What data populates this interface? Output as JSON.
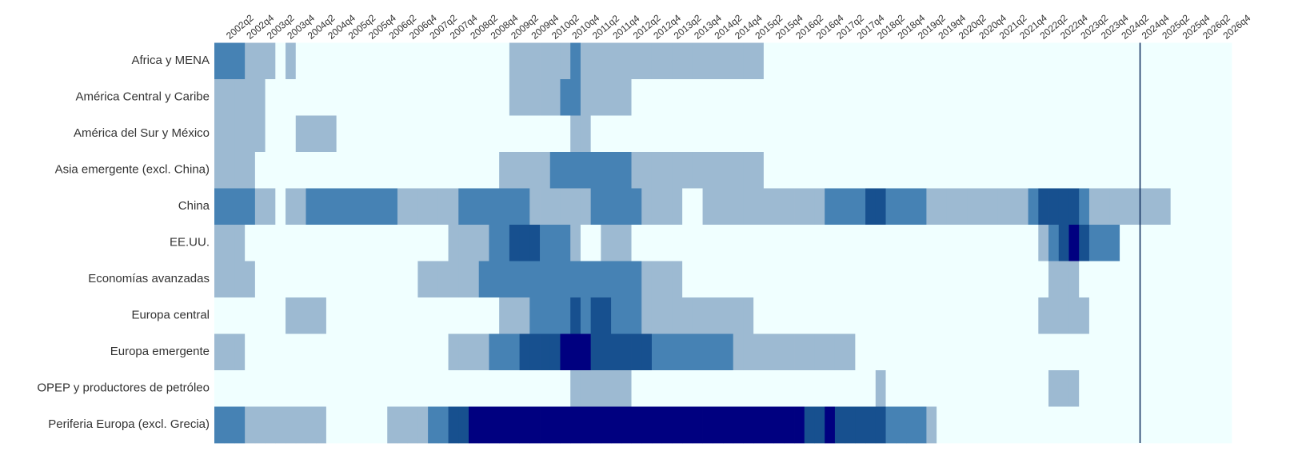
{
  "chart_data": {
    "type": "heatmap",
    "x": [
      null,
      "2002q2",
      null,
      "2002q4",
      null,
      "2003q2",
      null,
      "2003q4",
      null,
      "2004q2",
      null,
      "2004q4",
      null,
      "2005q2",
      null,
      "2005q4",
      null,
      "2006q2",
      null,
      "2006q4",
      null,
      "2007q2",
      null,
      "2007q4",
      null,
      "2008q2",
      null,
      "2008q4",
      null,
      "2009q2",
      null,
      "2009q4",
      null,
      "2010q2",
      null,
      "2010q4",
      null,
      "2011q2",
      null,
      "2011q4",
      null,
      "2012q2",
      null,
      "2012q4",
      null,
      "2013q2",
      null,
      "2013q4",
      null,
      "2014q2",
      null,
      "2014q4",
      null,
      "2015q2",
      null,
      "2015q4",
      null,
      "2016q2",
      null,
      "2016q4",
      null,
      "2017q2",
      null,
      "2017q4",
      null,
      "2018q2",
      null,
      "2018q4",
      null,
      "2019q2",
      null,
      "2019q4",
      null,
      "2020q2",
      null,
      "2020q4",
      null,
      "2021q2",
      null,
      "2021q4",
      null,
      "2022q2",
      null,
      "2022q4",
      null,
      "2023q2",
      null,
      "2023q4",
      null,
      "2024q2",
      null,
      "2024q4",
      null,
      "2025q2",
      null,
      "2025q4",
      null,
      "2026q2",
      null,
      "2026q4"
    ],
    "y": [
      "Africa y MENA",
      "América Central y Caribe",
      "América del Sur y México",
      "Asia emergente (excl. China)",
      "China",
      "EE.UU.",
      "Economías avanzadas",
      "Europa central",
      "Europa emergente",
      "OPEP y productores de petróleo",
      "Periferia Europa (excl. Grecia)"
    ],
    "z": [
      [
        2,
        2,
        2,
        1,
        1,
        1,
        0,
        1,
        0,
        0,
        0,
        0,
        0,
        0,
        0,
        0,
        0,
        0,
        0,
        0,
        0,
        0,
        0,
        0,
        0,
        0,
        0,
        0,
        0,
        1,
        1,
        1,
        1,
        1,
        1,
        2,
        1,
        1,
        1,
        1,
        1,
        1,
        1,
        1,
        1,
        1,
        1,
        1,
        1,
        1,
        1,
        1,
        1,
        1,
        0,
        0,
        0,
        0,
        0,
        0,
        0,
        0,
        0,
        0,
        0,
        0,
        0,
        0,
        0,
        0,
        0,
        0,
        0,
        0,
        0,
        0,
        0,
        0,
        0,
        0,
        0,
        0,
        0,
        0,
        0,
        0,
        0,
        0,
        0,
        0,
        0,
        0,
        0,
        0,
        0,
        0,
        0,
        0,
        0,
        0
      ],
      [
        1,
        1,
        1,
        1,
        1,
        0,
        0,
        0,
        0,
        0,
        0,
        0,
        0,
        0,
        0,
        0,
        0,
        0,
        0,
        0,
        0,
        0,
        0,
        0,
        0,
        0,
        0,
        0,
        0,
        1,
        1,
        1,
        1,
        1,
        2,
        2,
        1,
        1,
        1,
        1,
        1,
        0,
        0,
        0,
        0,
        0,
        0,
        0,
        0,
        0,
        0,
        0,
        0,
        0,
        0,
        0,
        0,
        0,
        0,
        0,
        0,
        0,
        0,
        0,
        0,
        0,
        0,
        0,
        0,
        0,
        0,
        0,
        0,
        0,
        0,
        0,
        0,
        0,
        0,
        0,
        0,
        0,
        0,
        0,
        0,
        0,
        0,
        0,
        0,
        0,
        0,
        0,
        0,
        0,
        0,
        0,
        0,
        0,
        0,
        0
      ],
      [
        1,
        1,
        1,
        1,
        1,
        0,
        0,
        0,
        1,
        1,
        1,
        1,
        0,
        0,
        0,
        0,
        0,
        0,
        0,
        0,
        0,
        0,
        0,
        0,
        0,
        0,
        0,
        0,
        0,
        0,
        0,
        0,
        0,
        0,
        0,
        1,
        1,
        0,
        0,
        0,
        0,
        0,
        0,
        0,
        0,
        0,
        0,
        0,
        0,
        0,
        0,
        0,
        0,
        0,
        0,
        0,
        0,
        0,
        0,
        0,
        0,
        0,
        0,
        0,
        0,
        0,
        0,
        0,
        0,
        0,
        0,
        0,
        0,
        0,
        0,
        0,
        0,
        0,
        0,
        0,
        0,
        0,
        0,
        0,
        0,
        0,
        0,
        0,
        0,
        0,
        0,
        0,
        0,
        0,
        0,
        0,
        0,
        0,
        0,
        0
      ],
      [
        1,
        1,
        1,
        1,
        0,
        0,
        0,
        0,
        0,
        0,
        0,
        0,
        0,
        0,
        0,
        0,
        0,
        0,
        0,
        0,
        0,
        0,
        0,
        0,
        0,
        0,
        0,
        0,
        1,
        1,
        1,
        1,
        1,
        2,
        2,
        2,
        2,
        2,
        2,
        2,
        2,
        1,
        1,
        1,
        1,
        1,
        1,
        1,
        1,
        1,
        1,
        1,
        1,
        1,
        0,
        0,
        0,
        0,
        0,
        0,
        0,
        0,
        0,
        0,
        0,
        0,
        0,
        0,
        0,
        0,
        0,
        0,
        0,
        0,
        0,
        0,
        0,
        0,
        0,
        0,
        0,
        0,
        0,
        0,
        0,
        0,
        0,
        0,
        0,
        0,
        0,
        0,
        0,
        0,
        0,
        0,
        0,
        0,
        0,
        0
      ],
      [
        2,
        2,
        2,
        2,
        1,
        1,
        0,
        1,
        1,
        2,
        2,
        2,
        2,
        2,
        2,
        2,
        2,
        2,
        1,
        1,
        1,
        1,
        1,
        1,
        2,
        2,
        2,
        2,
        2,
        2,
        2,
        1,
        1,
        1,
        1,
        1,
        1,
        2,
        2,
        2,
        2,
        2,
        1,
        1,
        1,
        1,
        0,
        0,
        1,
        1,
        1,
        1,
        1,
        1,
        1,
        1,
        1,
        1,
        1,
        1,
        2,
        2,
        2,
        2,
        3,
        3,
        2,
        2,
        2,
        2,
        1,
        1,
        1,
        1,
        1,
        1,
        1,
        1,
        1,
        1,
        2,
        3,
        3,
        3,
        3,
        2,
        1,
        1,
        1,
        1,
        1,
        1,
        1,
        1,
        0,
        0,
        0,
        0,
        0,
        0
      ],
      [
        1,
        1,
        1,
        0,
        0,
        0,
        0,
        0,
        0,
        0,
        0,
        0,
        0,
        0,
        0,
        0,
        0,
        0,
        0,
        0,
        0,
        0,
        0,
        1,
        1,
        1,
        1,
        2,
        2,
        3,
        3,
        3,
        2,
        2,
        2,
        1,
        0,
        0,
        1,
        1,
        1,
        0,
        0,
        0,
        0,
        0,
        0,
        0,
        0,
        0,
        0,
        0,
        0,
        0,
        0,
        0,
        0,
        0,
        0,
        0,
        0,
        0,
        0,
        0,
        0,
        0,
        0,
        0,
        0,
        0,
        0,
        0,
        0,
        0,
        0,
        0,
        0,
        0,
        0,
        0,
        0,
        1,
        2,
        3,
        4,
        3,
        2,
        2,
        2,
        0,
        0,
        0,
        0,
        0,
        0,
        0,
        0,
        0,
        0,
        0
      ],
      [
        1,
        1,
        1,
        1,
        0,
        0,
        0,
        0,
        0,
        0,
        0,
        0,
        0,
        0,
        0,
        0,
        0,
        0,
        0,
        0,
        1,
        1,
        1,
        1,
        1,
        1,
        2,
        2,
        2,
        2,
        2,
        2,
        2,
        2,
        2,
        2,
        2,
        2,
        2,
        2,
        2,
        2,
        1,
        1,
        1,
        1,
        0,
        0,
        0,
        0,
        0,
        0,
        0,
        0,
        0,
        0,
        0,
        0,
        0,
        0,
        0,
        0,
        0,
        0,
        0,
        0,
        0,
        0,
        0,
        0,
        0,
        0,
        0,
        0,
        0,
        0,
        0,
        0,
        0,
        0,
        0,
        0,
        1,
        1,
        1,
        0,
        0,
        0,
        0,
        0,
        0,
        0,
        0,
        0,
        0,
        0,
        0,
        0,
        0,
        0
      ],
      [
        0,
        0,
        0,
        0,
        0,
        0,
        0,
        1,
        1,
        1,
        1,
        0,
        0,
        0,
        0,
        0,
        0,
        0,
        0,
        0,
        0,
        0,
        0,
        0,
        0,
        0,
        0,
        0,
        1,
        1,
        1,
        2,
        2,
        2,
        2,
        3,
        2,
        3,
        3,
        2,
        2,
        2,
        1,
        1,
        1,
        1,
        1,
        1,
        1,
        1,
        1,
        1,
        1,
        0,
        0,
        0,
        0,
        0,
        0,
        0,
        0,
        0,
        0,
        0,
        0,
        0,
        0,
        0,
        0,
        0,
        0,
        0,
        0,
        0,
        0,
        0,
        0,
        0,
        0,
        0,
        0,
        1,
        1,
        1,
        1,
        1,
        0,
        0,
        0,
        0,
        0,
        0,
        0,
        0,
        0,
        0,
        0,
        0,
        0,
        0
      ],
      [
        1,
        1,
        1,
        0,
        0,
        0,
        0,
        0,
        0,
        0,
        0,
        0,
        0,
        0,
        0,
        0,
        0,
        0,
        0,
        0,
        0,
        0,
        0,
        1,
        1,
        1,
        1,
        2,
        2,
        2,
        3,
        3,
        3,
        3,
        4,
        4,
        4,
        3,
        3,
        3,
        3,
        3,
        3,
        2,
        2,
        2,
        2,
        2,
        2,
        2,
        2,
        1,
        1,
        1,
        1,
        1,
        1,
        1,
        1,
        1,
        1,
        1,
        1,
        0,
        0,
        0,
        0,
        0,
        0,
        0,
        0,
        0,
        0,
        0,
        0,
        0,
        0,
        0,
        0,
        0,
        0,
        0,
        0,
        0,
        0,
        0,
        0,
        0,
        0,
        0,
        0,
        0,
        0,
        0,
        0,
        0,
        0,
        0,
        0,
        0
      ],
      [
        0,
        0,
        0,
        0,
        0,
        0,
        0,
        0,
        0,
        0,
        0,
        0,
        0,
        0,
        0,
        0,
        0,
        0,
        0,
        0,
        0,
        0,
        0,
        0,
        0,
        0,
        0,
        0,
        0,
        0,
        0,
        0,
        0,
        0,
        0,
        1,
        1,
        1,
        1,
        1,
        1,
        0,
        0,
        0,
        0,
        0,
        0,
        0,
        0,
        0,
        0,
        0,
        0,
        0,
        0,
        0,
        0,
        0,
        0,
        0,
        0,
        0,
        0,
        0,
        0,
        1,
        0,
        0,
        0,
        0,
        0,
        0,
        0,
        0,
        0,
        0,
        0,
        0,
        0,
        0,
        0,
        0,
        1,
        1,
        1,
        0,
        0,
        0,
        0,
        0,
        0,
        0,
        0,
        0,
        0,
        0,
        0,
        0,
        0,
        0
      ],
      [
        2,
        2,
        2,
        1,
        1,
        1,
        1,
        1,
        1,
        1,
        1,
        0,
        0,
        0,
        0,
        0,
        0,
        1,
        1,
        1,
        1,
        2,
        2,
        3,
        3,
        4,
        4,
        4,
        4,
        4,
        4,
        4,
        4,
        4,
        4,
        4,
        4,
        4,
        4,
        4,
        4,
        4,
        4,
        4,
        4,
        4,
        4,
        4,
        4,
        4,
        4,
        4,
        4,
        4,
        4,
        4,
        4,
        4,
        3,
        3,
        4,
        3,
        3,
        3,
        3,
        3,
        2,
        2,
        2,
        2,
        1,
        0,
        0,
        0,
        0,
        0,
        0,
        0,
        0,
        0,
        0,
        0,
        0,
        0,
        0,
        0,
        0,
        0,
        0,
        0,
        0,
        0,
        0,
        0,
        0,
        0,
        0,
        0,
        0,
        0
      ]
    ],
    "colorscale": [
      "#f0ffff",
      "#9dbad2",
      "#4682b4",
      "#17508f",
      "#000080"
    ],
    "reference_line": {
      "x": "2024q4",
      "color": "#0d2b5c"
    }
  }
}
